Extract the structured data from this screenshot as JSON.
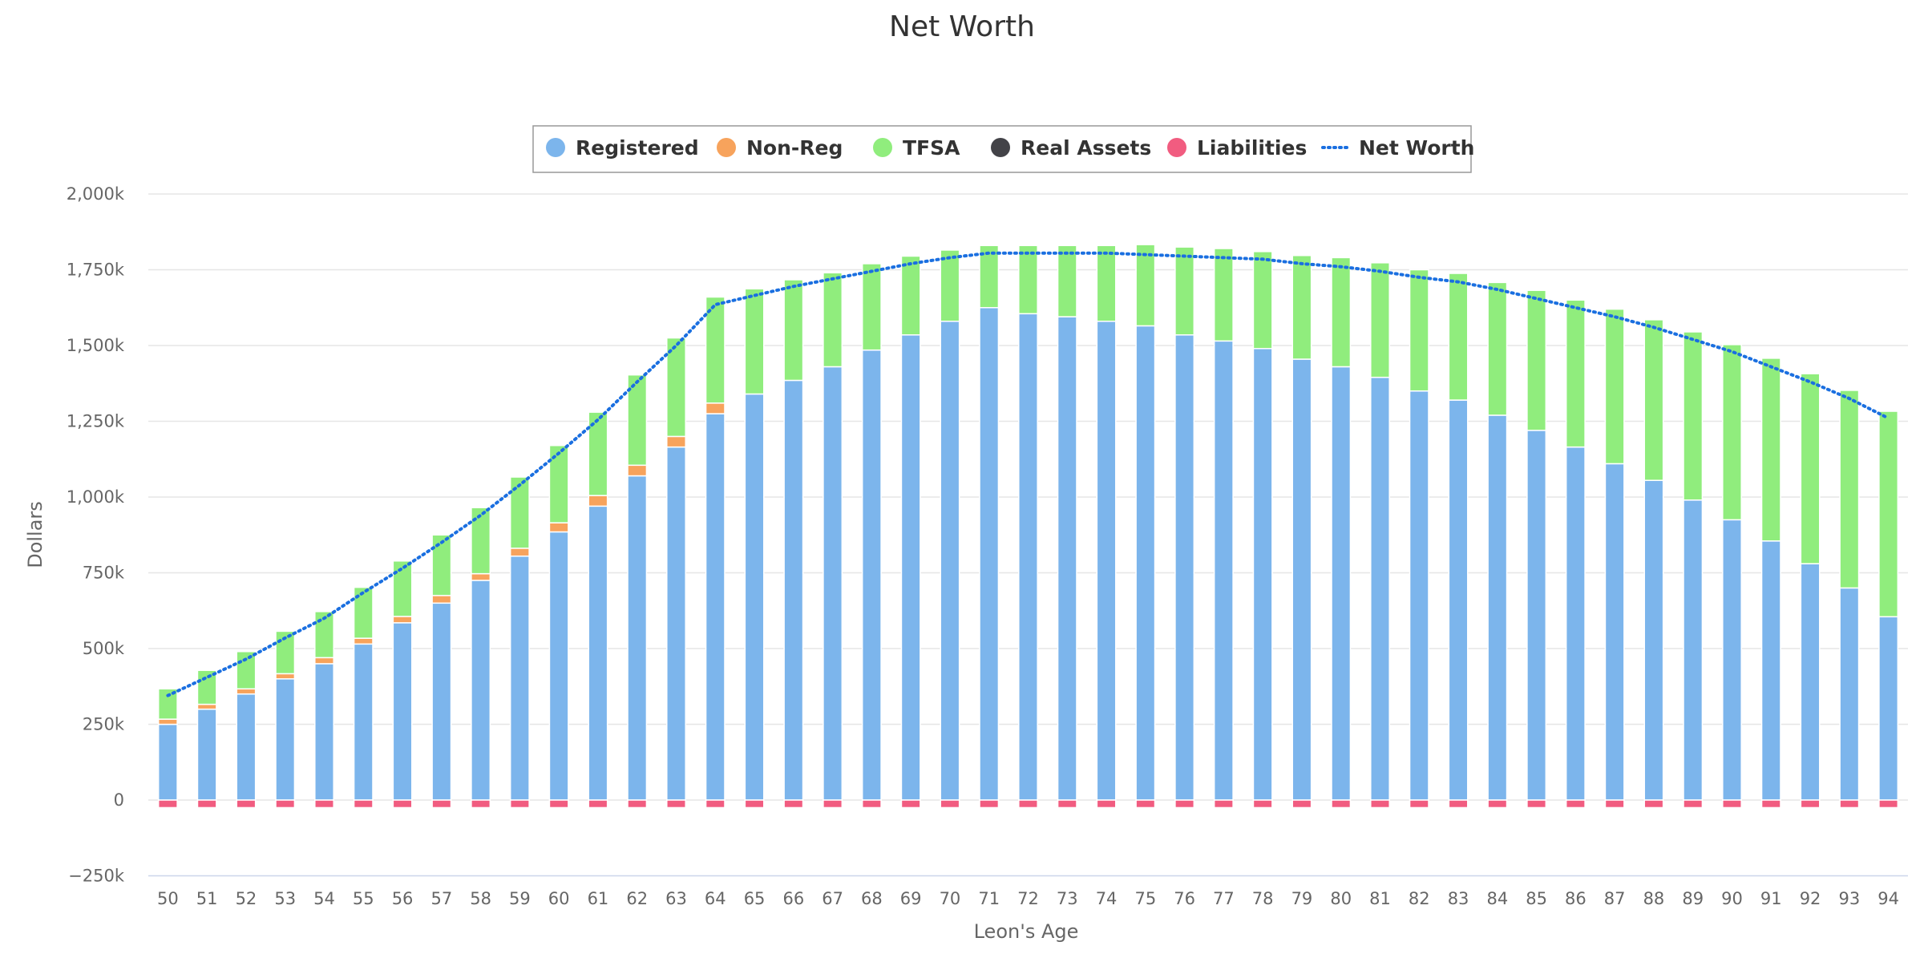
{
  "chart_data": {
    "type": "bar",
    "stacked": true,
    "title": "Net Worth",
    "xlabel": "Leon's Age",
    "ylabel": "Dollars",
    "ylim": [
      -250000,
      2000000
    ],
    "yticks": [
      -250000,
      0,
      250000,
      500000,
      750000,
      1000000,
      1250000,
      1500000,
      1750000,
      2000000
    ],
    "ytick_labels": [
      "−250k",
      "0",
      "250k",
      "500k",
      "750k",
      "1,000k",
      "1,250k",
      "1,500k",
      "1,750k",
      "2,000k"
    ],
    "grid": "horizontal",
    "legend_position": "top-center",
    "categories": [
      "50",
      "51",
      "52",
      "53",
      "54",
      "55",
      "56",
      "57",
      "58",
      "59",
      "60",
      "61",
      "62",
      "63",
      "64",
      "65",
      "66",
      "67",
      "68",
      "69",
      "70",
      "71",
      "72",
      "73",
      "74",
      "75",
      "76",
      "77",
      "78",
      "79",
      "80",
      "81",
      "82",
      "83",
      "84",
      "85",
      "86",
      "87",
      "88",
      "89",
      "90",
      "91",
      "92",
      "93",
      "94"
    ],
    "series": [
      {
        "name": "Registered",
        "type": "bar",
        "color": "#7cb5ec",
        "values": [
          250000,
          300000,
          350000,
          400000,
          450000,
          515000,
          585000,
          650000,
          725000,
          805000,
          885000,
          970000,
          1070000,
          1165000,
          1275000,
          1340000,
          1385000,
          1430000,
          1485000,
          1535000,
          1580000,
          1625000,
          1605000,
          1595000,
          1580000,
          1565000,
          1535000,
          1515000,
          1490000,
          1455000,
          1430000,
          1395000,
          1350000,
          1320000,
          1270000,
          1220000,
          1165000,
          1110000,
          1055000,
          990000,
          925000,
          855000,
          780000,
          700000,
          605000
        ]
      },
      {
        "name": "Non-Reg",
        "type": "bar",
        "color": "#f7a35c",
        "values": [
          17000,
          16000,
          17000,
          17000,
          20000,
          19000,
          21000,
          25000,
          22000,
          26000,
          30000,
          35000,
          35000,
          35000,
          35000,
          0,
          0,
          0,
          0,
          0,
          0,
          0,
          0,
          0,
          0,
          0,
          0,
          0,
          0,
          0,
          0,
          0,
          0,
          0,
          0,
          0,
          0,
          0,
          0,
          0,
          0,
          0,
          0,
          0,
          0
        ]
      },
      {
        "name": "TFSA",
        "type": "bar",
        "color": "#90ed7d",
        "values": [
          100000,
          112000,
          123000,
          140000,
          152000,
          168000,
          183000,
          200000,
          218000,
          235000,
          255000,
          275000,
          298000,
          325000,
          350000,
          347000,
          332000,
          310000,
          285000,
          260000,
          235000,
          205000,
          225000,
          235000,
          250000,
          268000,
          290000,
          305000,
          320000,
          342000,
          360000,
          378000,
          400000,
          418000,
          438000,
          462000,
          485000,
          510000,
          530000,
          555000,
          578000,
          603000,
          627000,
          652000,
          678000
        ]
      },
      {
        "name": "Real Assets",
        "type": "bar",
        "color": "#434348",
        "values": [
          0,
          0,
          0,
          0,
          0,
          0,
          0,
          0,
          0,
          0,
          0,
          0,
          0,
          0,
          0,
          0,
          0,
          0,
          0,
          0,
          0,
          0,
          0,
          0,
          0,
          0,
          0,
          0,
          0,
          0,
          0,
          0,
          0,
          0,
          0,
          0,
          0,
          0,
          0,
          0,
          0,
          0,
          0,
          0,
          0
        ]
      },
      {
        "name": "Liabilities",
        "type": "bar",
        "color": "#f15c80",
        "values": [
          -25000,
          -25000,
          -25000,
          -25000,
          -25000,
          -25000,
          -25000,
          -25000,
          -25000,
          -25000,
          -25000,
          -25000,
          -25000,
          -25000,
          -25000,
          -25000,
          -25000,
          -25000,
          -25000,
          -25000,
          -25000,
          -25000,
          -25000,
          -25000,
          -25000,
          -25000,
          -25000,
          -25000,
          -25000,
          -25000,
          -25000,
          -25000,
          -25000,
          -25000,
          -25000,
          -25000,
          -25000,
          -25000,
          -25000,
          -25000,
          -25000,
          -25000,
          -25000,
          -25000,
          -25000
        ]
      },
      {
        "name": "Net Worth",
        "type": "line",
        "dash": "dotted",
        "color": "#1a6fe0",
        "values": [
          345000,
          405000,
          465000,
          535000,
          600000,
          685000,
          765000,
          850000,
          940000,
          1040000,
          1145000,
          1255000,
          1380000,
          1500000,
          1635000,
          1665000,
          1695000,
          1720000,
          1745000,
          1770000,
          1790000,
          1805000,
          1805000,
          1805000,
          1805000,
          1800000,
          1795000,
          1790000,
          1785000,
          1770000,
          1760000,
          1745000,
          1725000,
          1710000,
          1685000,
          1655000,
          1625000,
          1595000,
          1560000,
          1520000,
          1480000,
          1430000,
          1380000,
          1325000,
          1260000
        ]
      }
    ]
  }
}
